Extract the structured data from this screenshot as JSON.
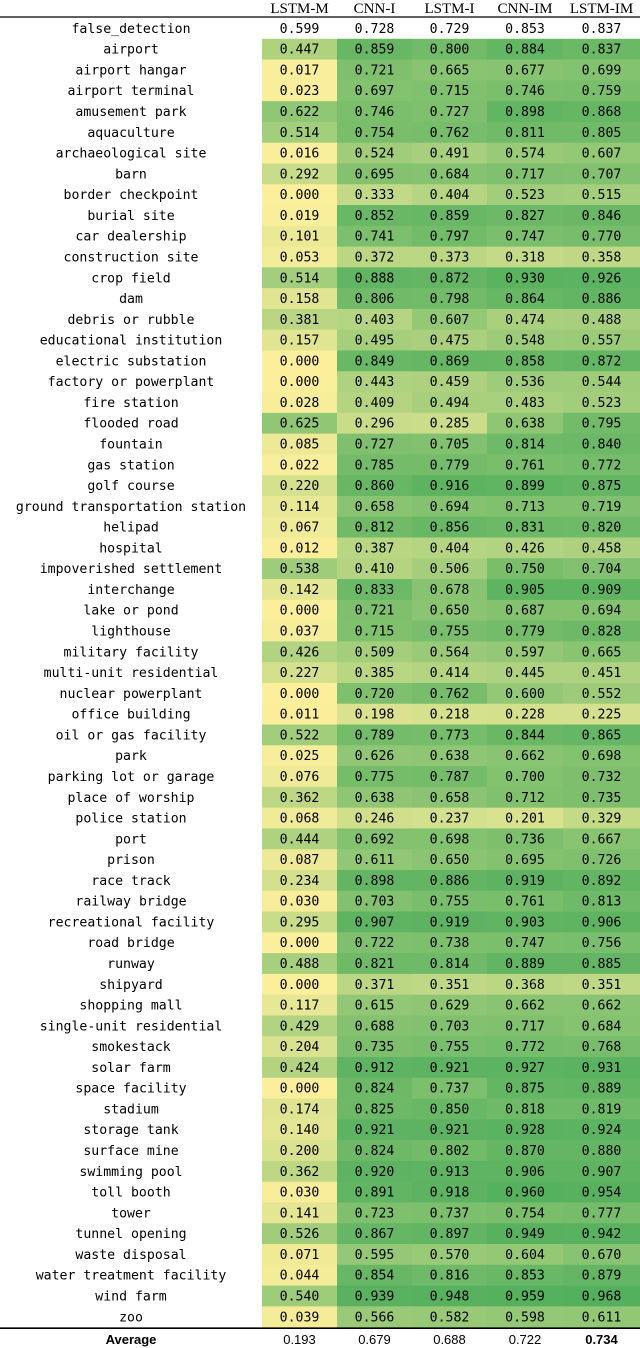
{
  "chart_data": {
    "type": "heatmap",
    "columns": [
      "LSTM-M",
      "CNN-I",
      "LSTM-I",
      "CNN-IM",
      "LSTM-IM"
    ],
    "rows": [
      {
        "label": "false_detection",
        "values": [
          0.599,
          0.728,
          0.729,
          0.853,
          0.837
        ],
        "colored": false
      },
      {
        "label": "airport",
        "values": [
          0.447,
          0.859,
          0.8,
          0.884,
          0.837
        ]
      },
      {
        "label": "airport hangar",
        "values": [
          0.017,
          0.721,
          0.665,
          0.677,
          0.699
        ]
      },
      {
        "label": "airport terminal",
        "values": [
          0.023,
          0.697,
          0.715,
          0.746,
          0.759
        ]
      },
      {
        "label": "amusement park",
        "values": [
          0.622,
          0.746,
          0.727,
          0.898,
          0.868
        ]
      },
      {
        "label": "aquaculture",
        "values": [
          0.514,
          0.754,
          0.762,
          0.811,
          0.805
        ]
      },
      {
        "label": "archaeological site",
        "values": [
          0.016,
          0.524,
          0.491,
          0.574,
          0.607
        ]
      },
      {
        "label": "barn",
        "values": [
          0.292,
          0.695,
          0.684,
          0.717,
          0.707
        ]
      },
      {
        "label": "border checkpoint",
        "values": [
          0.0,
          0.333,
          0.404,
          0.523,
          0.515
        ]
      },
      {
        "label": "burial site",
        "values": [
          0.019,
          0.852,
          0.859,
          0.827,
          0.846
        ]
      },
      {
        "label": "car dealership",
        "values": [
          0.101,
          0.741,
          0.797,
          0.747,
          0.77
        ]
      },
      {
        "label": "construction site",
        "values": [
          0.053,
          0.372,
          0.373,
          0.318,
          0.358
        ]
      },
      {
        "label": "crop field",
        "values": [
          0.514,
          0.888,
          0.872,
          0.93,
          0.926
        ]
      },
      {
        "label": "dam",
        "values": [
          0.158,
          0.806,
          0.798,
          0.864,
          0.886
        ]
      },
      {
        "label": "debris or rubble",
        "values": [
          0.381,
          0.403,
          0.607,
          0.474,
          0.488
        ]
      },
      {
        "label": "educational institution",
        "values": [
          0.157,
          0.495,
          0.475,
          0.548,
          0.557
        ]
      },
      {
        "label": "electric substation",
        "values": [
          0.0,
          0.849,
          0.869,
          0.858,
          0.872
        ]
      },
      {
        "label": "factory or powerplant",
        "values": [
          0.0,
          0.443,
          0.459,
          0.536,
          0.544
        ]
      },
      {
        "label": "fire station",
        "values": [
          0.028,
          0.409,
          0.494,
          0.483,
          0.523
        ]
      },
      {
        "label": "flooded road",
        "values": [
          0.625,
          0.296,
          0.285,
          0.638,
          0.795
        ]
      },
      {
        "label": "fountain",
        "values": [
          0.085,
          0.727,
          0.705,
          0.814,
          0.84
        ]
      },
      {
        "label": "gas station",
        "values": [
          0.022,
          0.785,
          0.779,
          0.761,
          0.772
        ]
      },
      {
        "label": "golf course",
        "values": [
          0.22,
          0.86,
          0.916,
          0.899,
          0.875
        ]
      },
      {
        "label": "ground transportation station",
        "values": [
          0.114,
          0.658,
          0.694,
          0.713,
          0.719
        ]
      },
      {
        "label": "helipad",
        "values": [
          0.067,
          0.812,
          0.856,
          0.831,
          0.82
        ]
      },
      {
        "label": "hospital",
        "values": [
          0.012,
          0.387,
          0.404,
          0.426,
          0.458
        ]
      },
      {
        "label": "impoverished settlement",
        "values": [
          0.538,
          0.41,
          0.506,
          0.75,
          0.704
        ]
      },
      {
        "label": "interchange",
        "values": [
          0.142,
          0.833,
          0.678,
          0.905,
          0.909
        ]
      },
      {
        "label": "lake or pond",
        "values": [
          0.0,
          0.721,
          0.65,
          0.687,
          0.694
        ]
      },
      {
        "label": "lighthouse",
        "values": [
          0.037,
          0.715,
          0.755,
          0.779,
          0.828
        ]
      },
      {
        "label": "military facility",
        "values": [
          0.426,
          0.509,
          0.564,
          0.597,
          0.665
        ]
      },
      {
        "label": "multi-unit residential",
        "values": [
          0.227,
          0.385,
          0.414,
          0.445,
          0.451
        ]
      },
      {
        "label": "nuclear powerplant",
        "values": [
          0.0,
          0.72,
          0.762,
          0.6,
          0.552
        ]
      },
      {
        "label": "office building",
        "values": [
          0.011,
          0.198,
          0.218,
          0.228,
          0.225
        ]
      },
      {
        "label": "oil or gas facility",
        "values": [
          0.522,
          0.789,
          0.773,
          0.844,
          0.865
        ]
      },
      {
        "label": "park",
        "values": [
          0.025,
          0.626,
          0.638,
          0.662,
          0.698
        ]
      },
      {
        "label": "parking lot or garage",
        "values": [
          0.076,
          0.775,
          0.787,
          0.7,
          0.732
        ]
      },
      {
        "label": "place of worship",
        "values": [
          0.362,
          0.638,
          0.658,
          0.712,
          0.735
        ]
      },
      {
        "label": "police station",
        "values": [
          0.068,
          0.246,
          0.237,
          0.201,
          0.329
        ]
      },
      {
        "label": "port",
        "values": [
          0.444,
          0.692,
          0.698,
          0.736,
          0.667
        ]
      },
      {
        "label": "prison",
        "values": [
          0.087,
          0.611,
          0.65,
          0.695,
          0.726
        ]
      },
      {
        "label": "race track",
        "values": [
          0.234,
          0.898,
          0.886,
          0.919,
          0.892
        ]
      },
      {
        "label": "railway bridge",
        "values": [
          0.03,
          0.703,
          0.755,
          0.761,
          0.813
        ]
      },
      {
        "label": "recreational facility",
        "values": [
          0.295,
          0.907,
          0.919,
          0.903,
          0.906
        ]
      },
      {
        "label": "road bridge",
        "values": [
          0.0,
          0.722,
          0.738,
          0.747,
          0.756
        ]
      },
      {
        "label": "runway",
        "values": [
          0.488,
          0.821,
          0.814,
          0.889,
          0.885
        ]
      },
      {
        "label": "shipyard",
        "values": [
          0.0,
          0.371,
          0.351,
          0.368,
          0.351
        ]
      },
      {
        "label": "shopping mall",
        "values": [
          0.117,
          0.615,
          0.629,
          0.662,
          0.662
        ]
      },
      {
        "label": "single-unit residential",
        "values": [
          0.429,
          0.688,
          0.703,
          0.717,
          0.684
        ]
      },
      {
        "label": "smokestack",
        "values": [
          0.204,
          0.735,
          0.755,
          0.772,
          0.768
        ]
      },
      {
        "label": "solar farm",
        "values": [
          0.424,
          0.912,
          0.921,
          0.927,
          0.931
        ]
      },
      {
        "label": "space facility",
        "values": [
          0.0,
          0.824,
          0.737,
          0.875,
          0.889
        ]
      },
      {
        "label": "stadium",
        "values": [
          0.174,
          0.825,
          0.85,
          0.818,
          0.819
        ]
      },
      {
        "label": "storage tank",
        "values": [
          0.14,
          0.921,
          0.921,
          0.928,
          0.924
        ]
      },
      {
        "label": "surface mine",
        "values": [
          0.2,
          0.824,
          0.802,
          0.87,
          0.88
        ]
      },
      {
        "label": "swimming pool",
        "values": [
          0.362,
          0.92,
          0.913,
          0.906,
          0.907
        ]
      },
      {
        "label": "toll booth",
        "values": [
          0.03,
          0.891,
          0.918,
          0.96,
          0.954
        ]
      },
      {
        "label": "tower",
        "values": [
          0.141,
          0.723,
          0.737,
          0.754,
          0.777
        ]
      },
      {
        "label": "tunnel opening",
        "values": [
          0.526,
          0.867,
          0.897,
          0.949,
          0.942
        ]
      },
      {
        "label": "waste disposal",
        "values": [
          0.071,
          0.595,
          0.57,
          0.604,
          0.67
        ]
      },
      {
        "label": "water treatment facility",
        "values": [
          0.044,
          0.854,
          0.816,
          0.853,
          0.879
        ]
      },
      {
        "label": "wind farm",
        "values": [
          0.54,
          0.939,
          0.948,
          0.959,
          0.968
        ]
      },
      {
        "label": "zoo",
        "values": [
          0.039,
          0.566,
          0.582,
          0.598,
          0.611
        ]
      }
    ],
    "average": {
      "label": "Average",
      "values": [
        0.193,
        0.679,
        0.688,
        0.722,
        0.734
      ],
      "bold_column": "LSTM-IM"
    },
    "color_scale": {
      "low": "#fcef9c",
      "high": "#4fae5c",
      "min": 0.0,
      "max": 1.0
    }
  }
}
